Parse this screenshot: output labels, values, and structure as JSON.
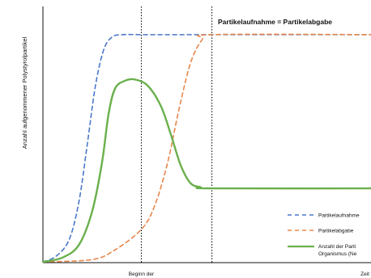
{
  "chart_data": {
    "type": "line",
    "title": "",
    "xlabel": "",
    "ylabel": "Anzahl aufgenommener Polystyrolpartikel",
    "xlim": [
      0,
      10
    ],
    "ylim": [
      0,
      10
    ],
    "annotation": "Partikelaufnahme = Partikelabgabe",
    "x_tick_labels": [
      {
        "x": 3.0,
        "text": "Beginn der"
      },
      {
        "x": 10.0,
        "text": "Zeit"
      }
    ],
    "vlines": [
      3.0,
      5.15
    ],
    "series": [
      {
        "name": "Partikelaufnahme",
        "color": "#4a78c8",
        "dash": "dashed",
        "points": [
          [
            0,
            0.03
          ],
          [
            0.4,
            0.25
          ],
          [
            0.8,
            0.9
          ],
          [
            1.1,
            2.4
          ],
          [
            1.35,
            4.6
          ],
          [
            1.6,
            6.9
          ],
          [
            1.85,
            8.3
          ],
          [
            2.1,
            8.8
          ],
          [
            2.4,
            8.9
          ],
          [
            3.0,
            8.9
          ],
          [
            4.0,
            8.9
          ],
          [
            5.15,
            8.9
          ],
          [
            10,
            8.9
          ]
        ]
      },
      {
        "name": "Partikelabgabe",
        "color": "#e8864a",
        "dash": "dashed",
        "points": [
          [
            0,
            0.03
          ],
          [
            1.5,
            0.12
          ],
          [
            2.2,
            0.5
          ],
          [
            3.0,
            1.3
          ],
          [
            3.4,
            2.2
          ],
          [
            3.8,
            3.9
          ],
          [
            4.15,
            6.0
          ],
          [
            4.5,
            7.8
          ],
          [
            4.85,
            8.7
          ],
          [
            5.15,
            8.9
          ],
          [
            10,
            8.9
          ]
        ]
      },
      {
        "name": "Anzahl der Partikel im Organismus (Netto)",
        "color": "#6ab04c",
        "dash": "solid",
        "points": [
          [
            0,
            0.03
          ],
          [
            0.6,
            0.2
          ],
          [
            1.1,
            0.7
          ],
          [
            1.5,
            2.0
          ],
          [
            1.8,
            3.9
          ],
          [
            2.0,
            5.8
          ],
          [
            2.2,
            6.8
          ],
          [
            2.5,
            7.1
          ],
          [
            2.8,
            7.15
          ],
          [
            3.2,
            6.9
          ],
          [
            3.6,
            6.1
          ],
          [
            3.9,
            5.0
          ],
          [
            4.2,
            3.8
          ],
          [
            4.5,
            3.1
          ],
          [
            4.8,
            2.95
          ],
          [
            5.15,
            2.9
          ],
          [
            10,
            2.9
          ]
        ]
      }
    ],
    "legend_position": "bottom-right",
    "legend_lines": [
      {
        "text": "Partikelaufnahme"
      },
      {
        "text": "Partikelabgabe"
      },
      {
        "text": "Anzahl der Parti"
      },
      {
        "text": "Organismus (Ne"
      }
    ]
  }
}
